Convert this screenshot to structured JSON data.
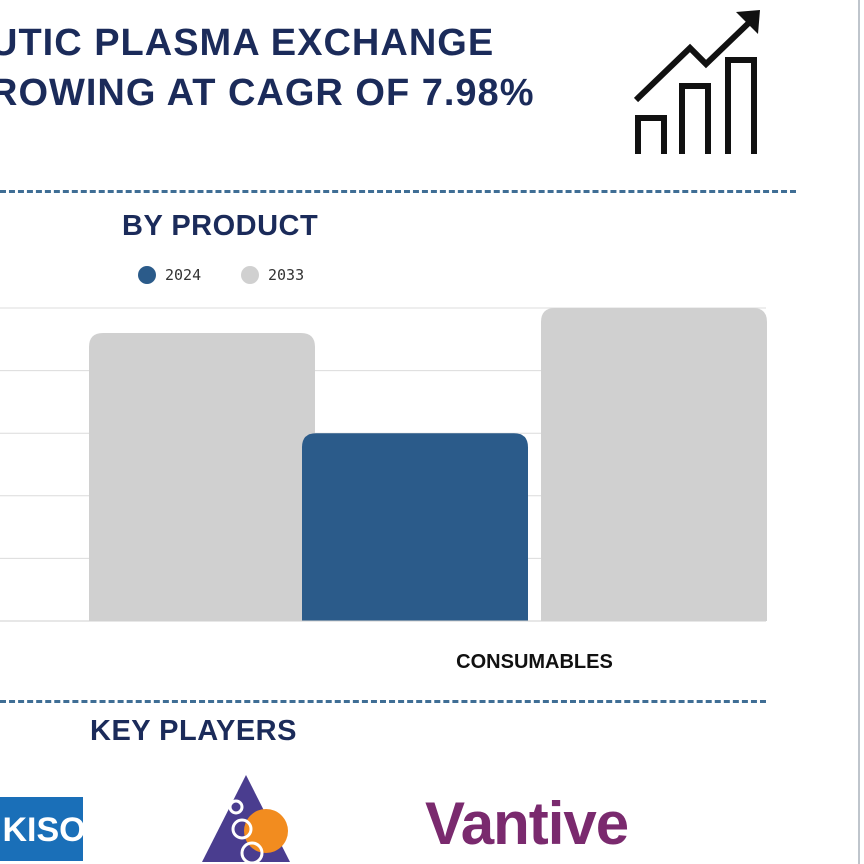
{
  "header": {
    "line1": "UTIC PLASMA EXCHANGE",
    "line2": "ROWING AT CAGR OF 7.98%",
    "icon": "growth-chart-icon"
  },
  "sections": {
    "by_product": "BY PRODUCT",
    "key_players": "KEY PLAYERS"
  },
  "colors": {
    "title": "#1b2b5a",
    "series_2024": "#2b5b8a",
    "series_2033": "#d0d0d0",
    "divider": "#3f6e95"
  },
  "chart_data": {
    "type": "bar",
    "categories": [
      "",
      "CONSUMABLES"
    ],
    "series": [
      {
        "name": "2024",
        "values": [
          null,
          3
        ]
      },
      {
        "name": "2033",
        "values": [
          4.6,
          5
        ]
      }
    ],
    "ylim": [
      0,
      5
    ],
    "grid": true,
    "legend": "top-left"
  },
  "key_players": [
    {
      "name": "KISO",
      "icon": "kiso-logo"
    },
    {
      "name": "",
      "icon": "triangle-circles-logo"
    },
    {
      "name": "Vantive",
      "icon": "vantive-logo"
    }
  ]
}
